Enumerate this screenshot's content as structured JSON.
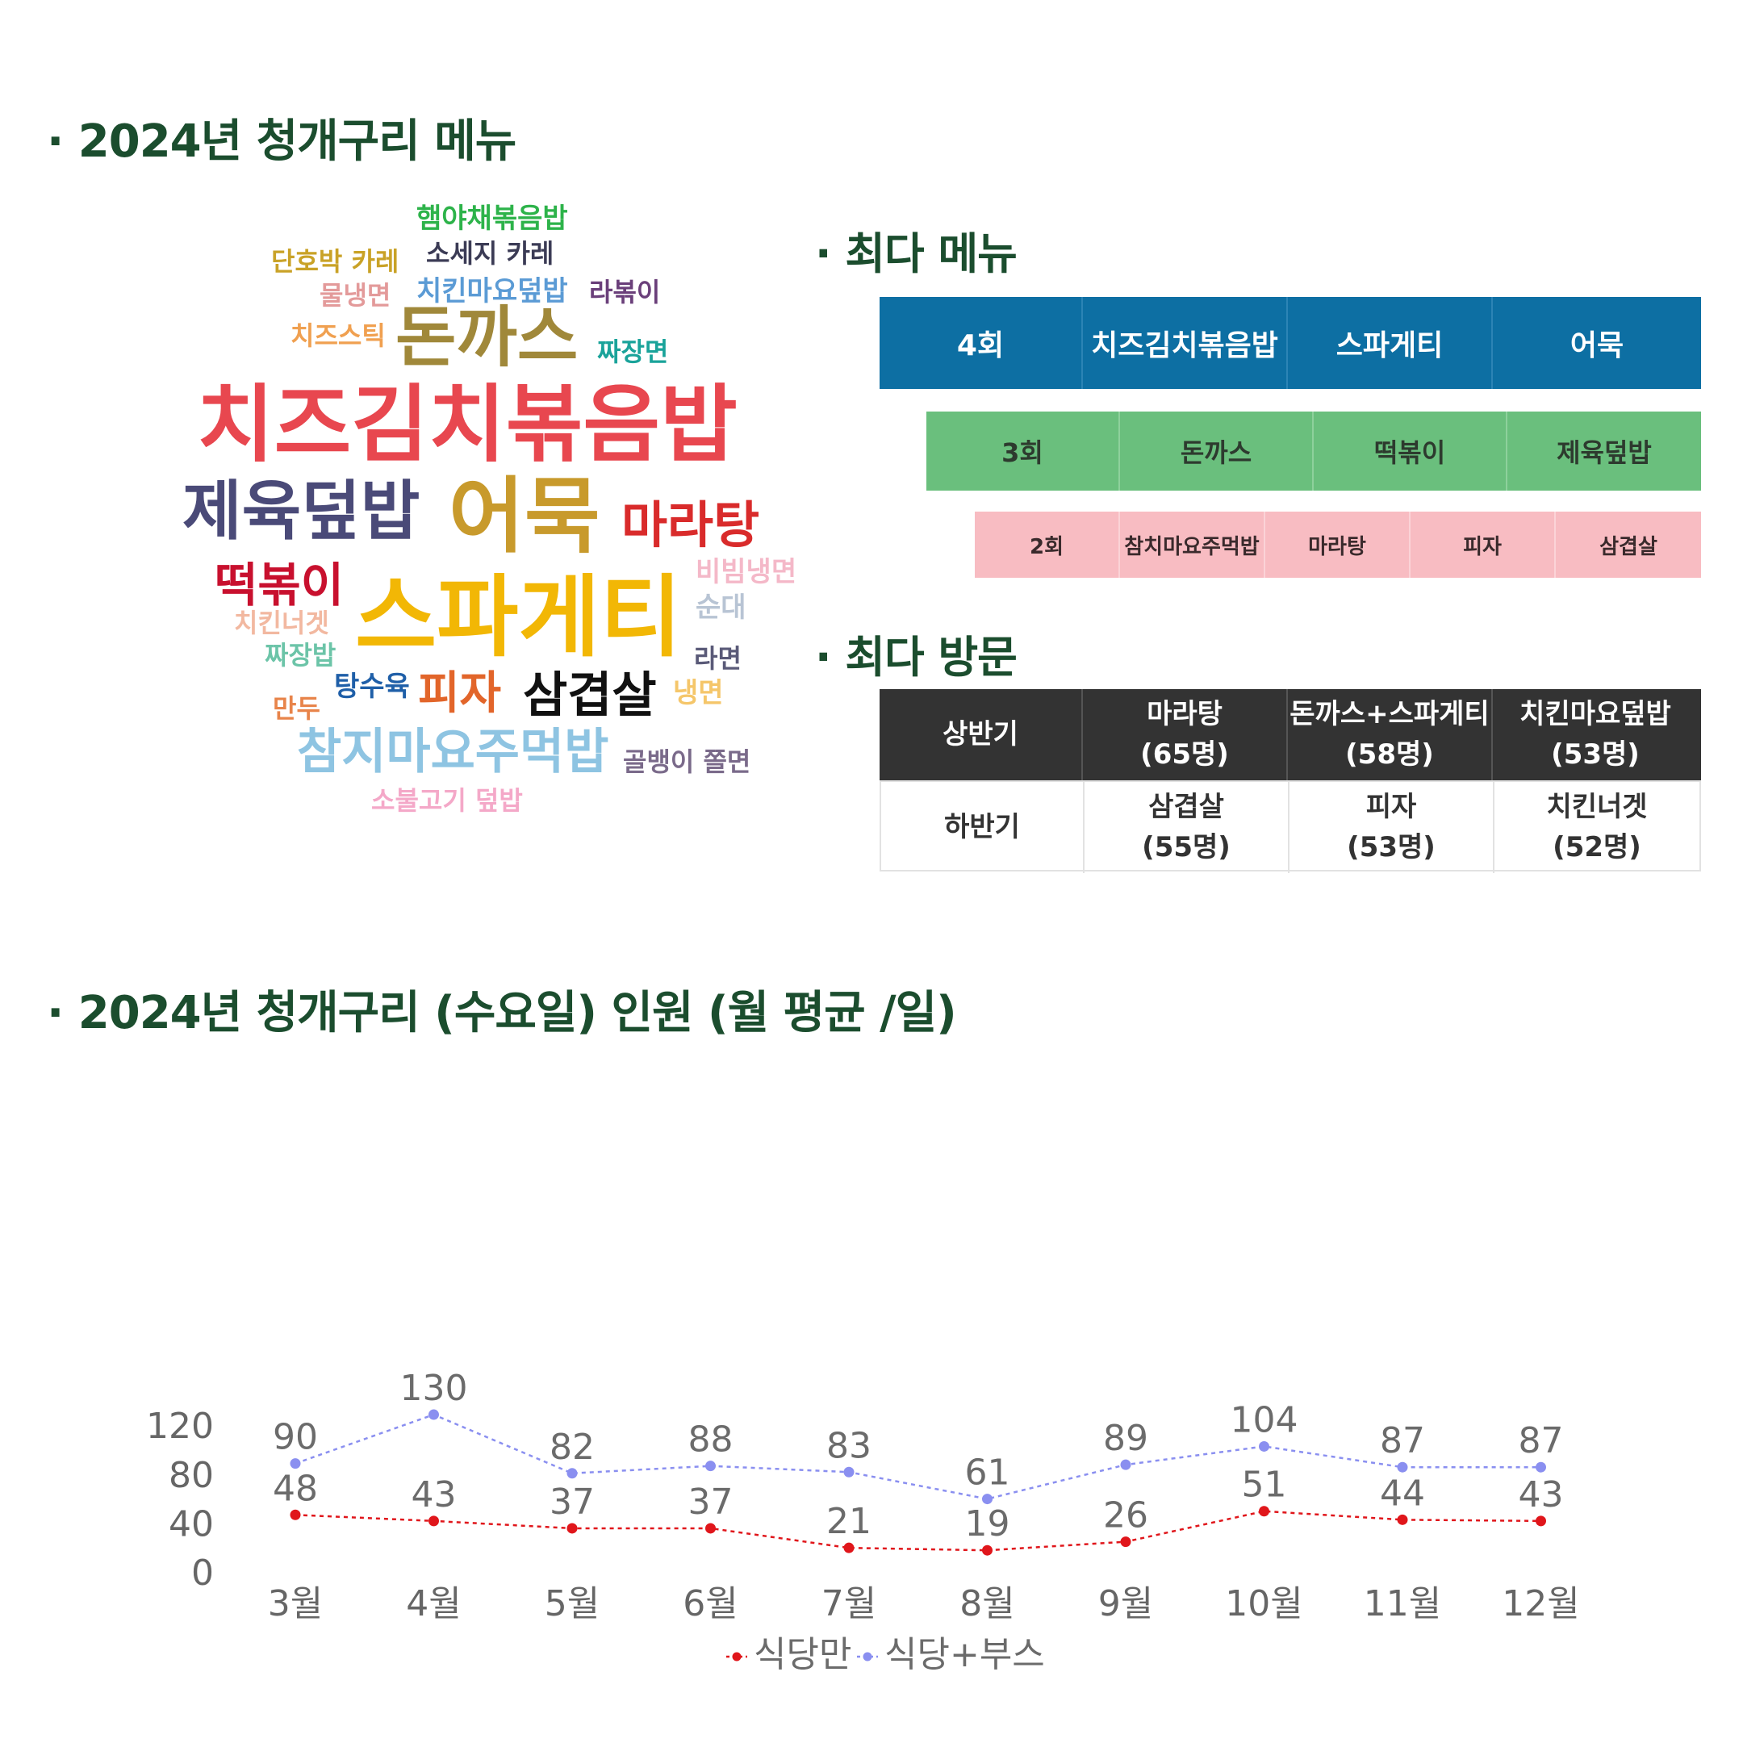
{
  "titles": {
    "menu_2024": "· 2024년 청개구리 메뉴",
    "top_menu": "· 최다 메뉴",
    "top_visit": "· 최다 방문",
    "headcount": "· 2024년 청개구리 (수요일) 인원 (월 평균 /일)"
  },
  "word_cloud": [
    {
      "text": "햄야채볶음밥",
      "color": "#2db34a"
    },
    {
      "text": "단호박 카레",
      "color": "#c9a227"
    },
    {
      "text": "소세지 카레",
      "color": "#3b3b55"
    },
    {
      "text": "물냉면",
      "color": "#e39a9a"
    },
    {
      "text": "치킨마요덮밥",
      "color": "#5b9bd5"
    },
    {
      "text": "라볶이",
      "color": "#6a3f7a"
    },
    {
      "text": "치즈스틱",
      "color": "#f0a050"
    },
    {
      "text": "돈까스",
      "color": "#a0883a"
    },
    {
      "text": "짜장면",
      "color": "#1aa39a"
    },
    {
      "text": "치즈김치볶음밥",
      "color": "#e8474f"
    },
    {
      "text": "제육덮밥",
      "color": "#4a4a78"
    },
    {
      "text": "어묵",
      "color": "#c89a2c"
    },
    {
      "text": "마라탕",
      "color": "#d92b2b"
    },
    {
      "text": "비빔냉면",
      "color": "#f4b8c8"
    },
    {
      "text": "떡볶이",
      "color": "#c8102e"
    },
    {
      "text": "순대",
      "color": "#b8c4d4"
    },
    {
      "text": "치킨너겟",
      "color": "#f2b8a0"
    },
    {
      "text": "스파게티",
      "color": "#f2b705"
    },
    {
      "text": "짜장밥",
      "color": "#6cc4a8"
    },
    {
      "text": "라면",
      "color": "#5a5a78"
    },
    {
      "text": "탕수육",
      "color": "#1f5fa8"
    },
    {
      "text": "만두",
      "color": "#e8844a"
    },
    {
      "text": "피자",
      "color": "#e2652a"
    },
    {
      "text": "삼겹살",
      "color": "#111111"
    },
    {
      "text": "냉면",
      "color": "#f5c66a"
    },
    {
      "text": "참지마요주먹밥",
      "color": "#8ec4e2"
    },
    {
      "text": "골뱅이 쫄면",
      "color": "#7a6a8a"
    },
    {
      "text": "소불고기 덮밥",
      "color": "#f4a8c8"
    }
  ],
  "top_menu": {
    "rows": [
      {
        "count": "4회",
        "items": [
          "치즈김치볶음밥",
          "스파게티",
          "어묵"
        ]
      },
      {
        "count": "3회",
        "items": [
          "돈까스",
          "떡볶이",
          "제육덮밥"
        ]
      },
      {
        "count": "2회",
        "items": [
          "참치마요주먹밥",
          "마라탕",
          "피자",
          "삼겹살"
        ]
      }
    ]
  },
  "top_visit": {
    "rows": [
      {
        "period": "상반기",
        "items": [
          {
            "name": "마라탕",
            "count": "(65명)"
          },
          {
            "name": "돈까스+스파게티",
            "count": "(58명)"
          },
          {
            "name": "치킨마요덮밥",
            "count": "(53명)"
          }
        ]
      },
      {
        "period": "하반기",
        "items": [
          {
            "name": "삼겹살",
            "count": "(55명)"
          },
          {
            "name": "피자",
            "count": "(53명)"
          },
          {
            "name": "치킨너겟",
            "count": "(52명)"
          }
        ]
      }
    ]
  },
  "chart_data": {
    "type": "line",
    "title": "",
    "categories": [
      "3월",
      "4월",
      "5월",
      "6월",
      "7월",
      "8월",
      "9월",
      "10월",
      "11월",
      "12월"
    ],
    "series": [
      {
        "name": "식당만",
        "color": "#e0161b",
        "values": [
          48,
          43,
          37,
          37,
          21,
          19,
          26,
          51,
          44,
          43
        ]
      },
      {
        "name": "식당+부스",
        "color": "#8a8ff0",
        "values": [
          90,
          130,
          82,
          88,
          83,
          61,
          89,
          104,
          87,
          87
        ]
      }
    ],
    "yticks": [
      "0",
      "40",
      "80",
      "120"
    ],
    "ylim": [
      0,
      140
    ],
    "line_style": "dotted",
    "data_labels": true,
    "legend": "bottom",
    "grid": false
  }
}
